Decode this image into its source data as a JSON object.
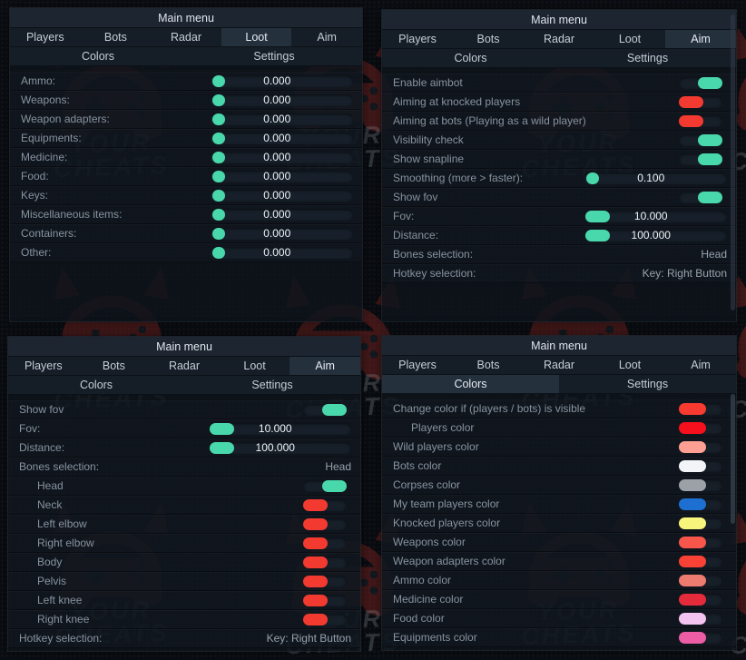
{
  "watermark": {
    "line1": "YOUR",
    "line2": "CHEATS"
  },
  "colors": {
    "toggle_on": "#49d8ab",
    "toggle_off": "#f23a31"
  },
  "menu": {
    "title": "Main menu",
    "tabs_row1": [
      "Players",
      "Bots",
      "Radar",
      "Loot",
      "Aim"
    ],
    "tabs_row2": [
      "Colors",
      "Settings"
    ]
  },
  "panels": [
    {
      "name": "loot-panel",
      "selected_tab": "Loot",
      "rows": [
        {
          "type": "slider",
          "label": "Ammo:",
          "value": "0.000",
          "knob": "dot"
        },
        {
          "type": "slider",
          "label": "Weapons:",
          "value": "0.000",
          "knob": "dot"
        },
        {
          "type": "slider",
          "label": "Weapon adapters:",
          "value": "0.000",
          "knob": "dot"
        },
        {
          "type": "slider",
          "label": "Equipments:",
          "value": "0.000",
          "knob": "dot"
        },
        {
          "type": "slider",
          "label": "Medicine:",
          "value": "0.000",
          "knob": "dot"
        },
        {
          "type": "slider",
          "label": "Food:",
          "value": "0.000",
          "knob": "dot"
        },
        {
          "type": "slider",
          "label": "Keys:",
          "value": "0.000",
          "knob": "dot"
        },
        {
          "type": "slider",
          "label": "Miscellaneous items:",
          "value": "0.000",
          "knob": "dot"
        },
        {
          "type": "slider",
          "label": "Containers:",
          "value": "0.000",
          "knob": "dot"
        },
        {
          "type": "slider",
          "label": "Other:",
          "value": "0.000",
          "knob": "dot"
        }
      ]
    },
    {
      "name": "aim-panel",
      "selected_tab": "Aim",
      "rows": [
        {
          "type": "toggle",
          "label": "Enable aimbot",
          "state": "on"
        },
        {
          "type": "toggle",
          "label": "Aiming at knocked players",
          "state": "off"
        },
        {
          "type": "toggle",
          "label": "Aiming at bots (Playing as a wild player)",
          "state": "off"
        },
        {
          "type": "toggle",
          "label": "Visibility check",
          "state": "on"
        },
        {
          "type": "toggle",
          "label": "Show snapline",
          "state": "on"
        },
        {
          "type": "slider",
          "label": "Smoothing (more > faster):",
          "value": "0.100",
          "knob": "dot"
        },
        {
          "type": "toggle",
          "label": "Show fov",
          "state": "on"
        },
        {
          "type": "slider",
          "label": "Fov:",
          "value": "10.000",
          "knob": "pill"
        },
        {
          "type": "slider",
          "label": "Distance:",
          "value": "100.000",
          "knob": "pill"
        },
        {
          "type": "select",
          "label": "Bones selection:",
          "value": "Head"
        },
        {
          "type": "select",
          "label": "Hotkey selection:",
          "value": "Key: Right Button"
        }
      ]
    },
    {
      "name": "aim-bones-panel",
      "selected_tab": "Aim",
      "rows": [
        {
          "type": "toggle",
          "label": "Show fov",
          "state": "on"
        },
        {
          "type": "slider",
          "label": "Fov:",
          "value": "10.000",
          "knob": "pill"
        },
        {
          "type": "slider",
          "label": "Distance:",
          "value": "100.000",
          "knob": "pill"
        },
        {
          "type": "select",
          "label": "Bones selection:",
          "value": "Head"
        },
        {
          "type": "toggle",
          "label": "Head",
          "state": "on",
          "indent": true
        },
        {
          "type": "toggle",
          "label": "Neck",
          "state": "off",
          "indent": true
        },
        {
          "type": "toggle",
          "label": "Left elbow",
          "state": "off",
          "indent": true
        },
        {
          "type": "toggle",
          "label": "Right elbow",
          "state": "off",
          "indent": true
        },
        {
          "type": "toggle",
          "label": "Body",
          "state": "off",
          "indent": true
        },
        {
          "type": "toggle",
          "label": "Pelvis",
          "state": "off",
          "indent": true
        },
        {
          "type": "toggle",
          "label": "Left knee",
          "state": "off",
          "indent": true
        },
        {
          "type": "toggle",
          "label": "Right knee",
          "state": "off",
          "indent": true
        },
        {
          "type": "select",
          "label": "Hotkey selection:",
          "value": "Key: Right Button"
        }
      ]
    },
    {
      "name": "colors-panel",
      "selected_tab": "Colors",
      "rows": [
        {
          "type": "color",
          "label": "Change color if (players / bots) is visible",
          "swatch": "#f83a30"
        },
        {
          "type": "color",
          "label": "Players color",
          "swatch": "#f60f1c",
          "indent": true
        },
        {
          "type": "color",
          "label": "Wild players color",
          "swatch": "#ff9e93"
        },
        {
          "type": "color",
          "label": "Bots color",
          "swatch": "#f2f4f8"
        },
        {
          "type": "color",
          "label": "Corpses color",
          "swatch": "#9ba1a7"
        },
        {
          "type": "color",
          "label": "My team players color",
          "swatch": "#1d6fd1"
        },
        {
          "type": "color",
          "label": "Knocked players color",
          "swatch": "#f8f57d"
        },
        {
          "type": "color",
          "label": "Weapons color",
          "swatch": "#f9564b"
        },
        {
          "type": "color",
          "label": "Weapon adapters color",
          "swatch": "#fa4136"
        },
        {
          "type": "color",
          "label": "Ammo color",
          "swatch": "#ee7b70"
        },
        {
          "type": "color",
          "label": "Medicine color",
          "swatch": "#e42b3c"
        },
        {
          "type": "color",
          "label": "Food color",
          "swatch": "#f2c4ef"
        },
        {
          "type": "color",
          "label": "Equipments color",
          "swatch": "#ed5da6"
        }
      ]
    }
  ]
}
